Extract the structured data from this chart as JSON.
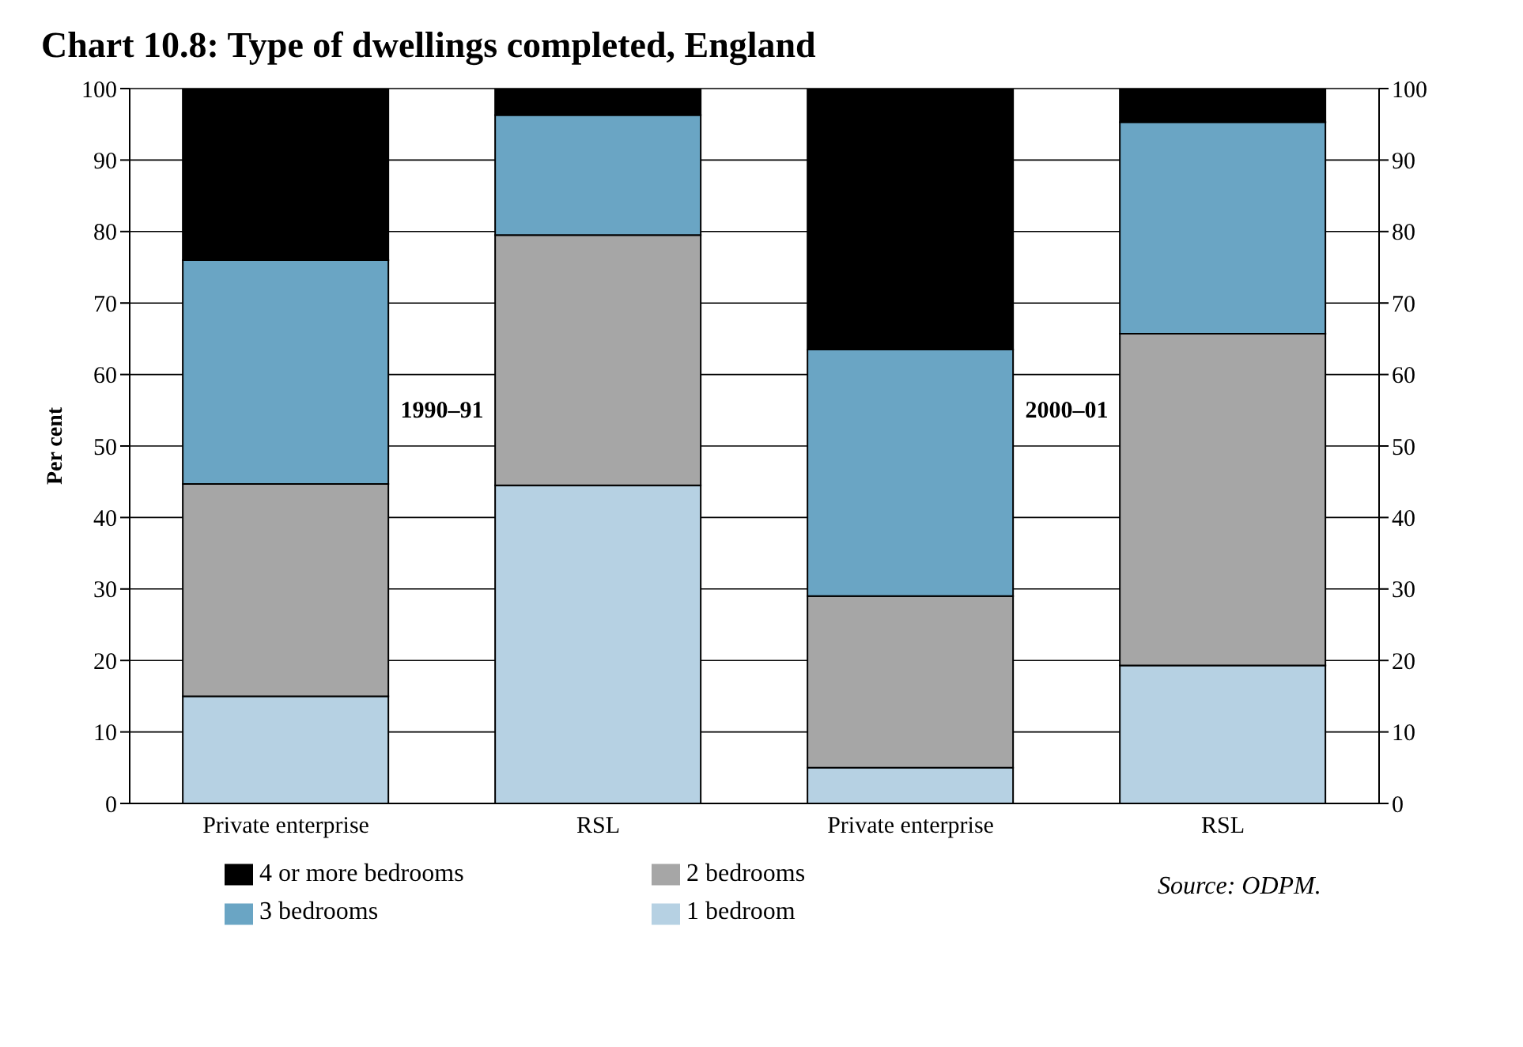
{
  "chart_data": {
    "type": "bar",
    "title": "Chart 10.8: Type of dwellings completed, England",
    "ylabel": "Per cent",
    "categories": [
      "Private enterprise",
      "RSL",
      "Private enterprise",
      "RSL"
    ],
    "stacked": true,
    "series": [
      {
        "name": "1 bedroom",
        "color": "#b6d1e3",
        "values": [
          15,
          44.5,
          5,
          19.3
        ]
      },
      {
        "name": "2 bedrooms",
        "color": "#a6a6a6",
        "values": [
          29.7,
          35,
          24,
          46.4
        ]
      },
      {
        "name": "3 bedrooms",
        "color": "#6aa5c4",
        "values": [
          31.3,
          16.8,
          34.5,
          29.6
        ]
      },
      {
        "name": "4 or more bedrooms",
        "color": "#000000",
        "values": [
          24,
          3.7,
          36.5,
          4.7
        ]
      }
    ],
    "ylim": [
      0,
      100
    ],
    "yticks": [
      0,
      10,
      20,
      30,
      40,
      50,
      60,
      70,
      80,
      90,
      100
    ],
    "y2lim": [
      0,
      100
    ],
    "y2ticks": [
      0,
      10,
      20,
      30,
      40,
      50,
      60,
      70,
      80,
      90,
      100
    ],
    "grid": "y",
    "legend": "bottom",
    "annotations": [
      "1990–91",
      "2000–01",
      "Source: ODPM."
    ]
  }
}
